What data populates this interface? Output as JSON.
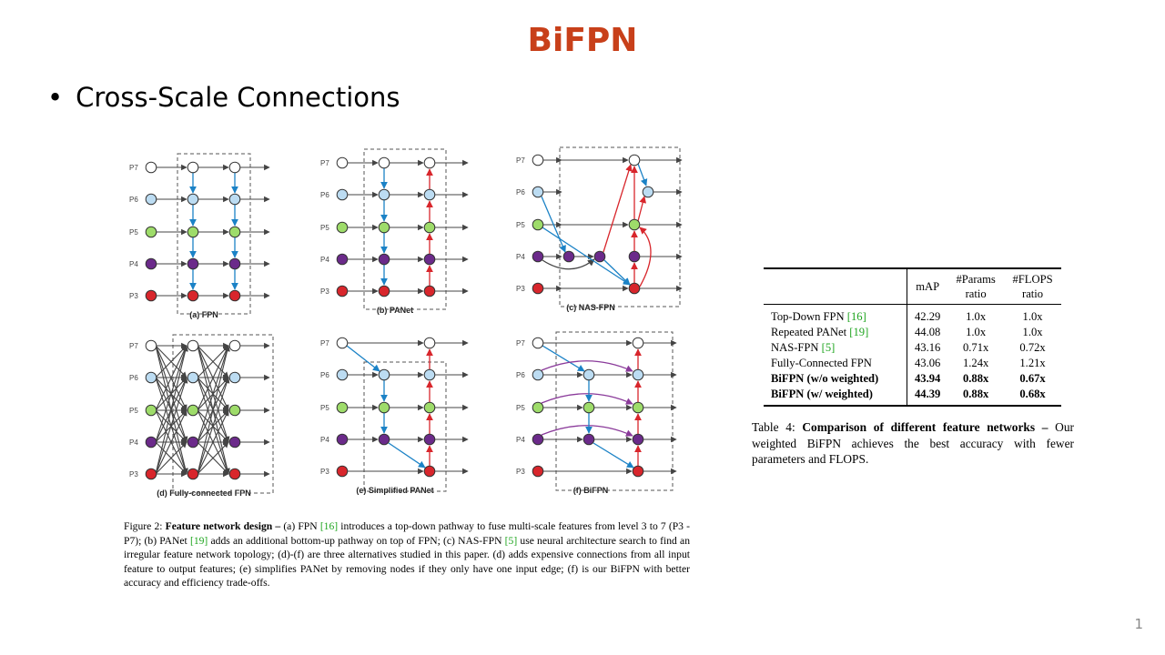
{
  "slide": {
    "title": "BiFPN",
    "bullet": "Cross-Scale Connections",
    "page_number": "1"
  },
  "colors": {
    "title": "#c8401a",
    "node_p7": "#ffffff",
    "node_p6": "#bcdcf2",
    "node_p5": "#9edc6a",
    "node_p4": "#6b2a8a",
    "node_p3": "#d8262c",
    "top_down_arrow": "#1b82c6",
    "bottom_up_arrow": "#d8262c",
    "skip_arrow": "#8a3a9a",
    "citation": "#1fa51f"
  },
  "figure": {
    "level_labels": [
      "P7",
      "P6",
      "P5",
      "P4",
      "P3"
    ],
    "panels": [
      {
        "id": "fpn",
        "caption": "(a) FPN"
      },
      {
        "id": "panet",
        "caption": "(b) PANet"
      },
      {
        "id": "nasfpn",
        "caption": "(c) NAS-FPN"
      },
      {
        "id": "fc",
        "caption": "(d) Fully-connected FPN"
      },
      {
        "id": "simple",
        "caption": "(e) Simplified PANet"
      },
      {
        "id": "bifpn",
        "caption": "(f) BiFPN"
      }
    ],
    "caption": {
      "label": "Figure 2: ",
      "bold": "Feature network design –",
      "seg1": " (a) FPN ",
      "cite1": "[16]",
      "seg2": " introduces a top-down pathway to fuse multi-scale features from level 3 to 7 (P3 - P7); (b) PANet ",
      "cite2": "[19]",
      "seg3": " adds an additional bottom-up pathway on top of FPN; (c) NAS-FPN ",
      "cite3": "[5]",
      "seg4": " use neural architecture search to find an irregular feature network topology; (d)-(f) are three alternatives studied in this paper. (d) adds expensive connections from all input feature to output features; (e) simplifies PANet by removing nodes if they only have one input edge; (f) is our BiFPN with better accuracy and efficiency trade-offs."
    }
  },
  "table": {
    "headers": {
      "map": "mAP",
      "params1": "#Params",
      "params2": "ratio",
      "flops1": "#FLOPS",
      "flops2": "ratio"
    },
    "rows": [
      {
        "name": "Top-Down FPN ",
        "cite": "[16]",
        "map": "42.29",
        "params": "1.0x",
        "flops": "1.0x"
      },
      {
        "name": "Repeated PANet ",
        "cite": "[19]",
        "map": "44.08",
        "params": "1.0x",
        "flops": "1.0x"
      },
      {
        "name": "NAS-FPN ",
        "cite": "[5]",
        "map": "43.16",
        "params": "0.71x",
        "flops": "0.72x"
      },
      {
        "name": "Fully-Connected FPN",
        "cite": "",
        "map": "43.06",
        "params": "1.24x",
        "flops": "1.21x"
      },
      {
        "name": "BiFPN (w/o weighted)",
        "cite": "",
        "map": "43.94",
        "params": "0.88x",
        "flops": "0.67x"
      },
      {
        "name": "BiFPN (w/ weighted)",
        "cite": "",
        "map": "44.39",
        "params": "0.88x",
        "flops": "0.68x"
      }
    ],
    "caption": {
      "label": "Table 4: ",
      "bold": "Comparison of different feature networks –",
      "rest": " Our weighted BiFPN achieves the best accuracy with fewer parameters and FLOPS."
    }
  }
}
